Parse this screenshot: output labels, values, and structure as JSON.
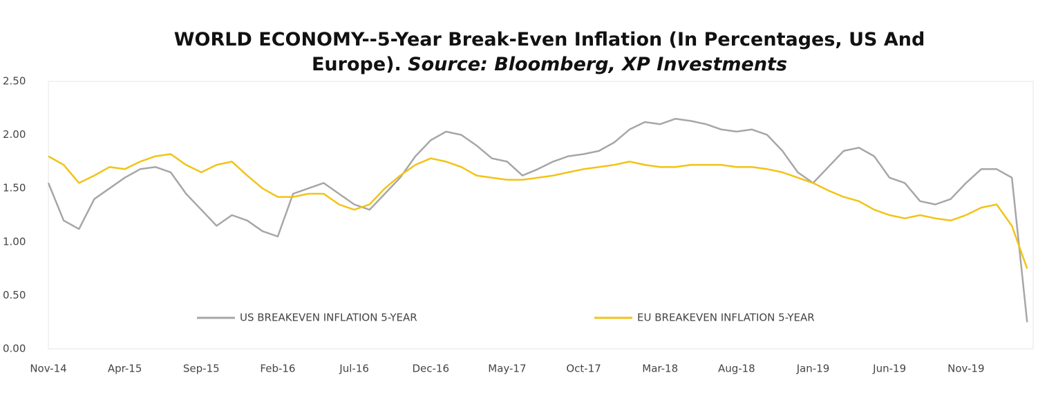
{
  "chart_data": {
    "type": "line",
    "title": "WORLD ECONOMY--5-Year Break-Even Inflation (In Percentages, US And Europe).",
    "subtitle": "Source: Bloomberg, XP Investments",
    "categories": [
      "Nov-14",
      null,
      null,
      null,
      null,
      "Apr-15",
      null,
      null,
      null,
      null,
      "Sep-15",
      null,
      null,
      null,
      null,
      "Feb-16",
      null,
      null,
      null,
      null,
      "Jul-16",
      null,
      null,
      null,
      null,
      "Dec-16",
      null,
      null,
      null,
      null,
      "May-17",
      null,
      null,
      null,
      null,
      "Oct-17",
      null,
      null,
      null,
      null,
      "Mar-18",
      null,
      null,
      null,
      null,
      "Aug-18",
      null,
      null,
      null,
      null,
      "Jan-19",
      null,
      null,
      null,
      null,
      "Jun-19",
      null,
      null,
      null,
      null,
      "Nov-19",
      null,
      null,
      null,
      null
    ],
    "series": [
      {
        "name": "US BREAKEVEN INFLATION 5-YEAR",
        "color": "#a6a6a6",
        "values": [
          1.55,
          1.2,
          1.12,
          1.4,
          1.5,
          1.6,
          1.68,
          1.7,
          1.65,
          1.45,
          1.3,
          1.15,
          1.25,
          1.2,
          1.1,
          1.05,
          1.45,
          1.5,
          1.55,
          1.45,
          1.35,
          1.3,
          1.45,
          1.6,
          1.8,
          1.95,
          2.03,
          2.0,
          1.9,
          1.78,
          1.75,
          1.62,
          1.68,
          1.75,
          1.8,
          1.82,
          1.85,
          1.93,
          2.05,
          2.12,
          2.1,
          2.15,
          2.13,
          2.1,
          2.05,
          2.03,
          2.05,
          2.0,
          1.85,
          1.65,
          1.55,
          1.7,
          1.85,
          1.88,
          1.8,
          1.6,
          1.55,
          1.38,
          1.35,
          1.4,
          1.55,
          1.68,
          1.68,
          1.6,
          0.25
        ]
      },
      {
        "name": "EU BREAKEVEN INFLATION 5-YEAR",
        "color": "#f2c314",
        "values": [
          1.8,
          1.72,
          1.55,
          1.62,
          1.7,
          1.68,
          1.75,
          1.8,
          1.82,
          1.72,
          1.65,
          1.72,
          1.75,
          1.62,
          1.5,
          1.42,
          1.42,
          1.45,
          1.45,
          1.35,
          1.3,
          1.35,
          1.5,
          1.62,
          1.72,
          1.78,
          1.75,
          1.7,
          1.62,
          1.6,
          1.58,
          1.58,
          1.6,
          1.62,
          1.65,
          1.68,
          1.7,
          1.72,
          1.75,
          1.72,
          1.7,
          1.7,
          1.72,
          1.72,
          1.72,
          1.7,
          1.7,
          1.68,
          1.65,
          1.6,
          1.55,
          1.48,
          1.42,
          1.38,
          1.3,
          1.25,
          1.22,
          1.25,
          1.22,
          1.2,
          1.25,
          1.32,
          1.35,
          1.15,
          0.75
        ]
      }
    ],
    "ylim": [
      0,
      2.5
    ],
    "yticks": [
      {
        "value": 0,
        "label": "0.00"
      },
      {
        "value": 0.5,
        "label": "0.50"
      },
      {
        "value": 1,
        "label": "1.00"
      },
      {
        "value": 1.5,
        "label": "1.50"
      },
      {
        "value": 2,
        "label": "2.00"
      },
      {
        "value": 2.5,
        "label": "2.50"
      }
    ],
    "grid": false,
    "legend": "bottom"
  }
}
